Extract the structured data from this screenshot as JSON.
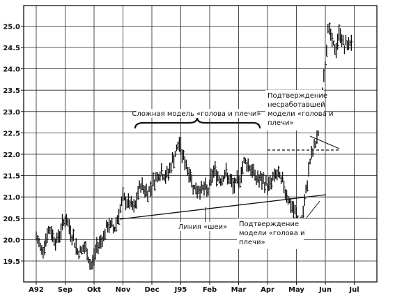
{
  "chart_data": {
    "type": "bar",
    "style": "OHLC high-low price bars (daily)",
    "grid": true,
    "colors": {
      "bars": "#111111",
      "grid": "#222222",
      "background": "#ffffff"
    },
    "ylim": [
      19.2,
      25.5
    ],
    "yticks": [
      "19.5",
      "20.0",
      "20.5",
      "21.0",
      "21.5",
      "22.0",
      "22.5",
      "23.0",
      "23.5",
      "24.0",
      "24.5",
      "25.0"
    ],
    "xticks": [
      "A92",
      "Sep",
      "Okt",
      "Nov",
      "Dec",
      "J95",
      "Feb",
      "Mar",
      "Apr",
      "May",
      "Jun",
      "Jul"
    ],
    "price_path": [
      [
        0.0,
        20.05
      ],
      [
        0.2,
        19.75
      ],
      [
        0.45,
        20.25
      ],
      [
        0.7,
        19.95
      ],
      [
        1.0,
        20.5
      ],
      [
        1.2,
        20.2
      ],
      [
        1.45,
        19.7
      ],
      [
        1.7,
        19.8
      ],
      [
        1.9,
        19.35
      ],
      [
        2.1,
        19.85
      ],
      [
        2.3,
        20.05
      ],
      [
        2.5,
        20.35
      ],
      [
        2.7,
        20.25
      ],
      [
        2.85,
        20.6
      ],
      [
        3.0,
        20.95
      ],
      [
        3.2,
        20.85
      ],
      [
        3.4,
        20.7
      ],
      [
        3.6,
        21.3
      ],
      [
        3.85,
        21.1
      ],
      [
        4.1,
        21.4
      ],
      [
        4.3,
        21.6
      ],
      [
        4.5,
        21.45
      ],
      [
        4.75,
        21.9
      ],
      [
        4.95,
        22.25
      ],
      [
        5.1,
        21.9
      ],
      [
        5.3,
        21.55
      ],
      [
        5.5,
        21.15
      ],
      [
        5.7,
        21.2
      ],
      [
        5.95,
        21.15
      ],
      [
        6.15,
        21.65
      ],
      [
        6.35,
        21.4
      ],
      [
        6.55,
        21.55
      ],
      [
        6.8,
        21.25
      ],
      [
        7.0,
        21.35
      ],
      [
        7.2,
        21.85
      ],
      [
        7.4,
        21.7
      ],
      [
        7.6,
        21.45
      ],
      [
        7.85,
        21.35
      ],
      [
        8.05,
        21.25
      ],
      [
        8.3,
        21.55
      ],
      [
        8.55,
        21.3
      ],
      [
        8.8,
        20.8
      ],
      [
        9.0,
        20.55
      ],
      [
        9.15,
        20.3
      ],
      [
        9.3,
        20.9
      ],
      [
        9.45,
        21.8
      ],
      [
        9.6,
        22.1
      ],
      [
        9.75,
        22.5
      ],
      [
        9.9,
        23.5
      ],
      [
        10.0,
        24.2
      ],
      [
        10.1,
        25.0
      ],
      [
        10.2,
        24.7
      ],
      [
        10.35,
        24.4
      ],
      [
        10.5,
        24.9
      ],
      [
        10.65,
        24.5
      ],
      [
        10.9,
        24.65
      ]
    ],
    "annotations": [
      {
        "text": "Сложная модель «голова и плечи»"
      },
      {
        "lines": [
          "Подтверждение",
          "несработавшей",
          "модели «голова и",
          "плечи»"
        ]
      },
      {
        "text": "Линия «шеи»"
      },
      {
        "lines": [
          "Подтверждение",
          "модели «голова и",
          "плечи»"
        ]
      }
    ]
  }
}
